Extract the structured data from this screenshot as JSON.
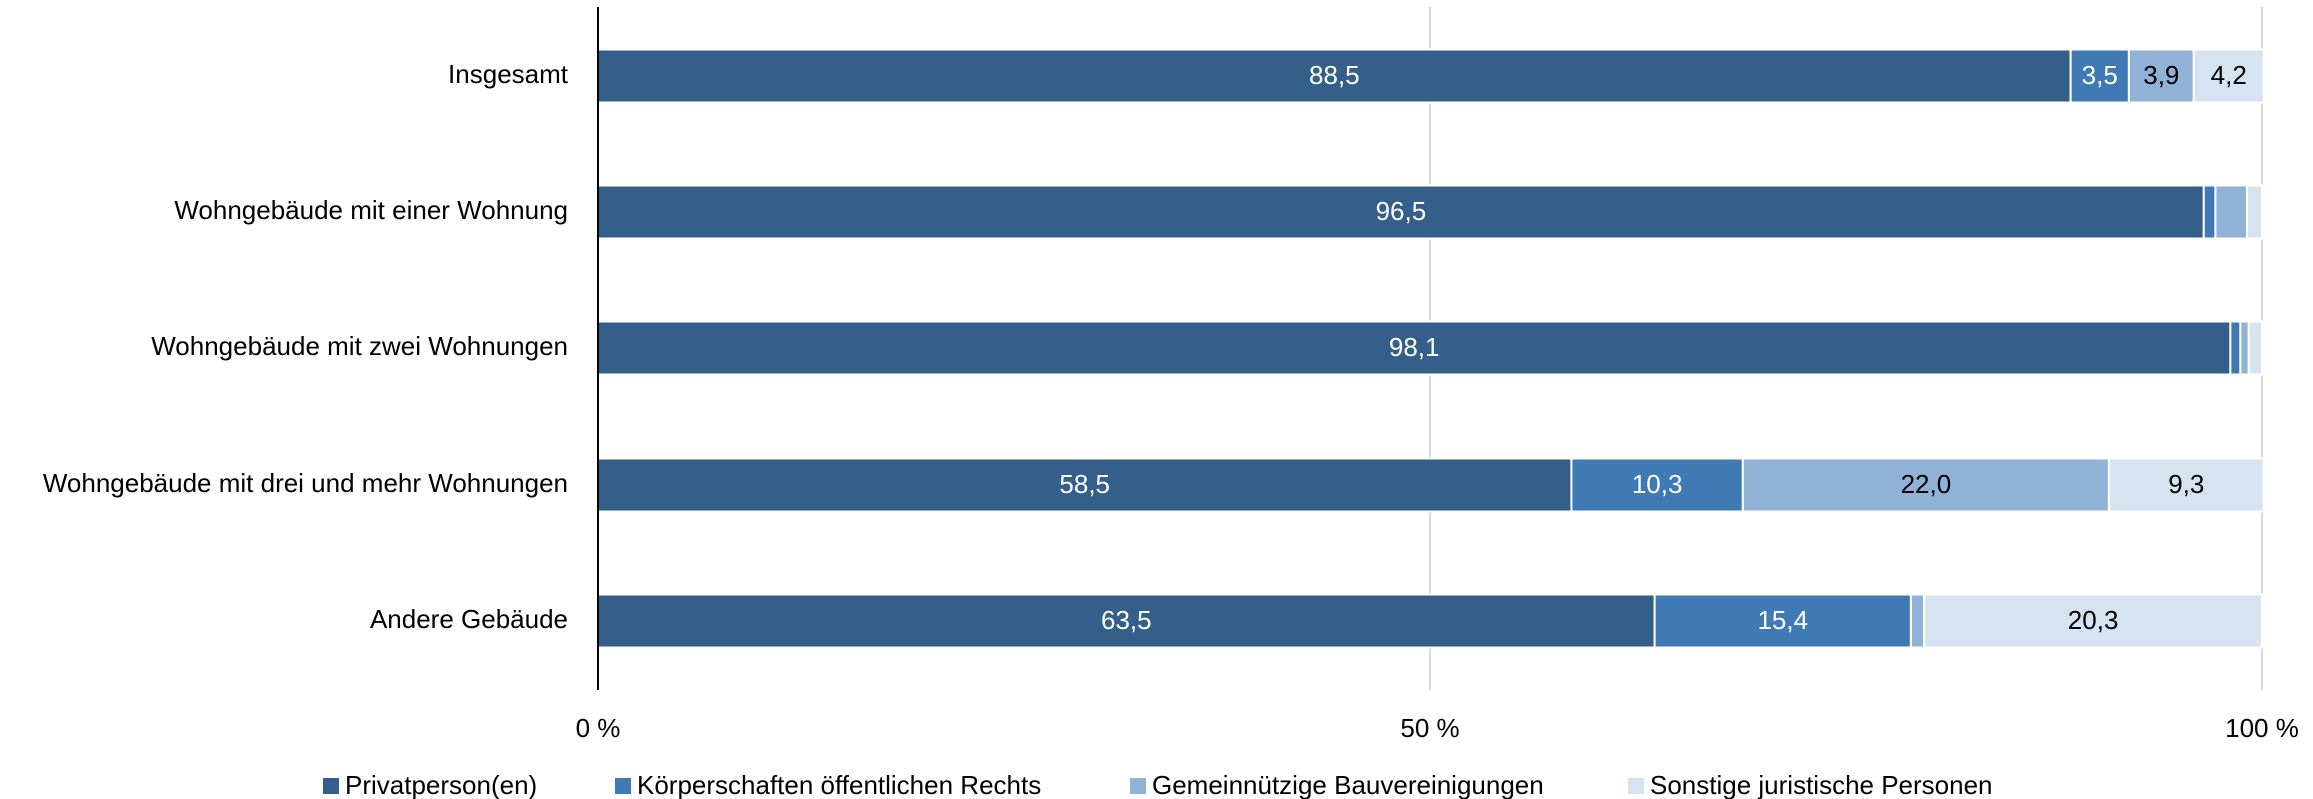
{
  "chart_data": {
    "type": "stacked_bar_horizontal",
    "categories": [
      "Insgesamt",
      "Wohngebäude mit einer Wohnung",
      "Wohngebäude mit zwei Wohnungen",
      "Wohngebäude mit drei und mehr Wohnungen",
      "Andere Gebäude"
    ],
    "series": [
      {
        "name": "Privatperson(en)",
        "color": "#335f8a",
        "values": [
          88.5,
          96.5,
          98.1,
          58.5,
          63.5
        ],
        "value_labels": [
          "88,5",
          "96,5",
          "98,1",
          "58,5",
          "63,5"
        ]
      },
      {
        "name": "Körperschaften öffentlichen Rechts",
        "color": "#3f7ab5",
        "values": [
          3.5,
          0.7,
          0.6,
          10.3,
          15.4
        ],
        "value_labels": [
          "3,5",
          null,
          null,
          "10,3",
          "15,4"
        ]
      },
      {
        "name": "Gemeinnützige Bauvereinigungen",
        "color": "#8fb2d6",
        "values": [
          3.9,
          1.9,
          0.5,
          22.0,
          0.8
        ],
        "value_labels": [
          "3,9",
          null,
          null,
          "22,0",
          null
        ]
      },
      {
        "name": "Sonstige juristische Personen",
        "color": "#d6e3f0",
        "values": [
          4.2,
          0.9,
          0.8,
          9.3,
          20.3
        ],
        "value_labels": [
          "4,2",
          null,
          null,
          "9,3",
          "20,3"
        ]
      }
    ],
    "xlim": [
      0,
      100
    ],
    "xticks": [
      {
        "value": 0,
        "label": "0 %"
      },
      {
        "value": 50,
        "label": "50 %"
      },
      {
        "value": 100,
        "label": "100 %"
      }
    ],
    "grid": true,
    "legend": "bottom"
  }
}
